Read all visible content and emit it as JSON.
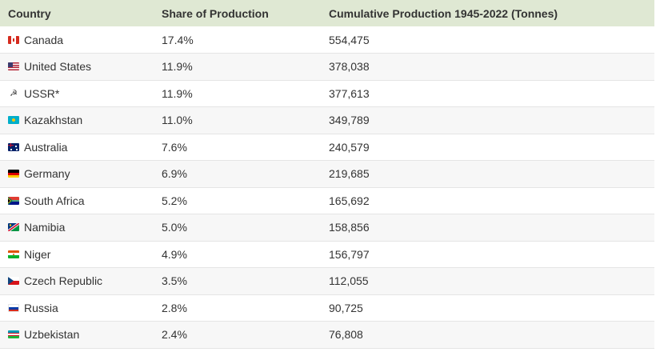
{
  "table": {
    "headers": {
      "country": "Country",
      "share": "Share of Production",
      "cumulative": "Cumulative Production 1945-2022 (Tonnes)"
    },
    "rows": [
      {
        "country": "Canada",
        "share": "17.4%",
        "cumulative": "554,475",
        "icon": "canada-flag-icon"
      },
      {
        "country": "United States",
        "share": "11.9%",
        "cumulative": "378,038",
        "icon": "united-states-flag-icon"
      },
      {
        "country": "USSR*",
        "share": "11.9%",
        "cumulative": "377,613",
        "icon": "hammer-sickle-icon"
      },
      {
        "country": "Kazakhstan",
        "share": "11.0%",
        "cumulative": "349,789",
        "icon": "kazakhstan-flag-icon"
      },
      {
        "country": "Australia",
        "share": "7.6%",
        "cumulative": "240,579",
        "icon": "australia-flag-icon"
      },
      {
        "country": "Germany",
        "share": "6.9%",
        "cumulative": "219,685",
        "icon": "germany-flag-icon"
      },
      {
        "country": "South Africa",
        "share": "5.2%",
        "cumulative": "165,692",
        "icon": "south-africa-flag-icon"
      },
      {
        "country": "Namibia",
        "share": "5.0%",
        "cumulative": "158,856",
        "icon": "namibia-flag-icon"
      },
      {
        "country": "Niger",
        "share": "4.9%",
        "cumulative": "156,797",
        "icon": "niger-flag-icon"
      },
      {
        "country": "Czech Republic",
        "share": "3.5%",
        "cumulative": "112,055",
        "icon": "czech-republic-flag-icon"
      },
      {
        "country": "Russia",
        "share": "2.8%",
        "cumulative": "90,725",
        "icon": "russia-flag-icon"
      },
      {
        "country": "Uzbekistan",
        "share": "2.4%",
        "cumulative": "76,808",
        "icon": "uzbekistan-flag-icon"
      }
    ]
  },
  "colors": {
    "header_bg": "#dfe8d3",
    "alt_row_bg": "#f7f7f7",
    "row_border": "#e5e5e5",
    "text": "#333333"
  }
}
